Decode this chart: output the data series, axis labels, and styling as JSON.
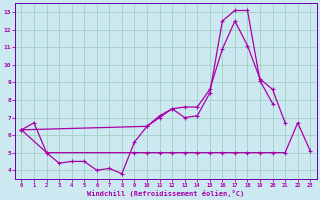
{
  "xlabel": "Windchill (Refroidissement éolien,°C)",
  "bg_color": "#cce8f0",
  "line_color": "#aa00aa",
  "grid_color": "#99ccbb",
  "spine_color": "#6600aa",
  "xlim": [
    -0.5,
    23.5
  ],
  "ylim": [
    3.5,
    13.5
  ],
  "xticks": [
    0,
    1,
    2,
    3,
    4,
    5,
    6,
    7,
    8,
    9,
    10,
    11,
    12,
    13,
    14,
    15,
    16,
    17,
    18,
    19,
    20,
    21,
    22,
    23
  ],
  "yticks": [
    4,
    5,
    6,
    7,
    8,
    9,
    10,
    11,
    12,
    13
  ],
  "line1_x": [
    0,
    1,
    2,
    3,
    4,
    5,
    6,
    7,
    8,
    9,
    10,
    11,
    12,
    13,
    14,
    15,
    16,
    17,
    18,
    19,
    20
  ],
  "line1_y": [
    6.3,
    6.7,
    5.0,
    4.4,
    4.5,
    4.5,
    4.0,
    4.1,
    3.8,
    5.6,
    6.5,
    7.0,
    7.5,
    7.0,
    7.1,
    8.4,
    12.5,
    13.1,
    13.1,
    9.1,
    7.8
  ],
  "line2_x": [
    0,
    10,
    11,
    12,
    13,
    14,
    15,
    16,
    17,
    18,
    19,
    20,
    21
  ],
  "line2_y": [
    6.3,
    6.5,
    7.1,
    7.5,
    7.6,
    7.6,
    8.6,
    10.9,
    12.5,
    11.1,
    9.2,
    8.6,
    6.7
  ],
  "line3_x": [
    0,
    2,
    9,
    10,
    11,
    12,
    13,
    14,
    15,
    16,
    17,
    18,
    19,
    20,
    21,
    22,
    23
  ],
  "line3_y": [
    6.3,
    5.0,
    5.0,
    5.0,
    5.0,
    5.0,
    5.0,
    5.0,
    5.0,
    5.0,
    5.0,
    5.0,
    5.0,
    5.0,
    5.0,
    6.7,
    5.1
  ]
}
